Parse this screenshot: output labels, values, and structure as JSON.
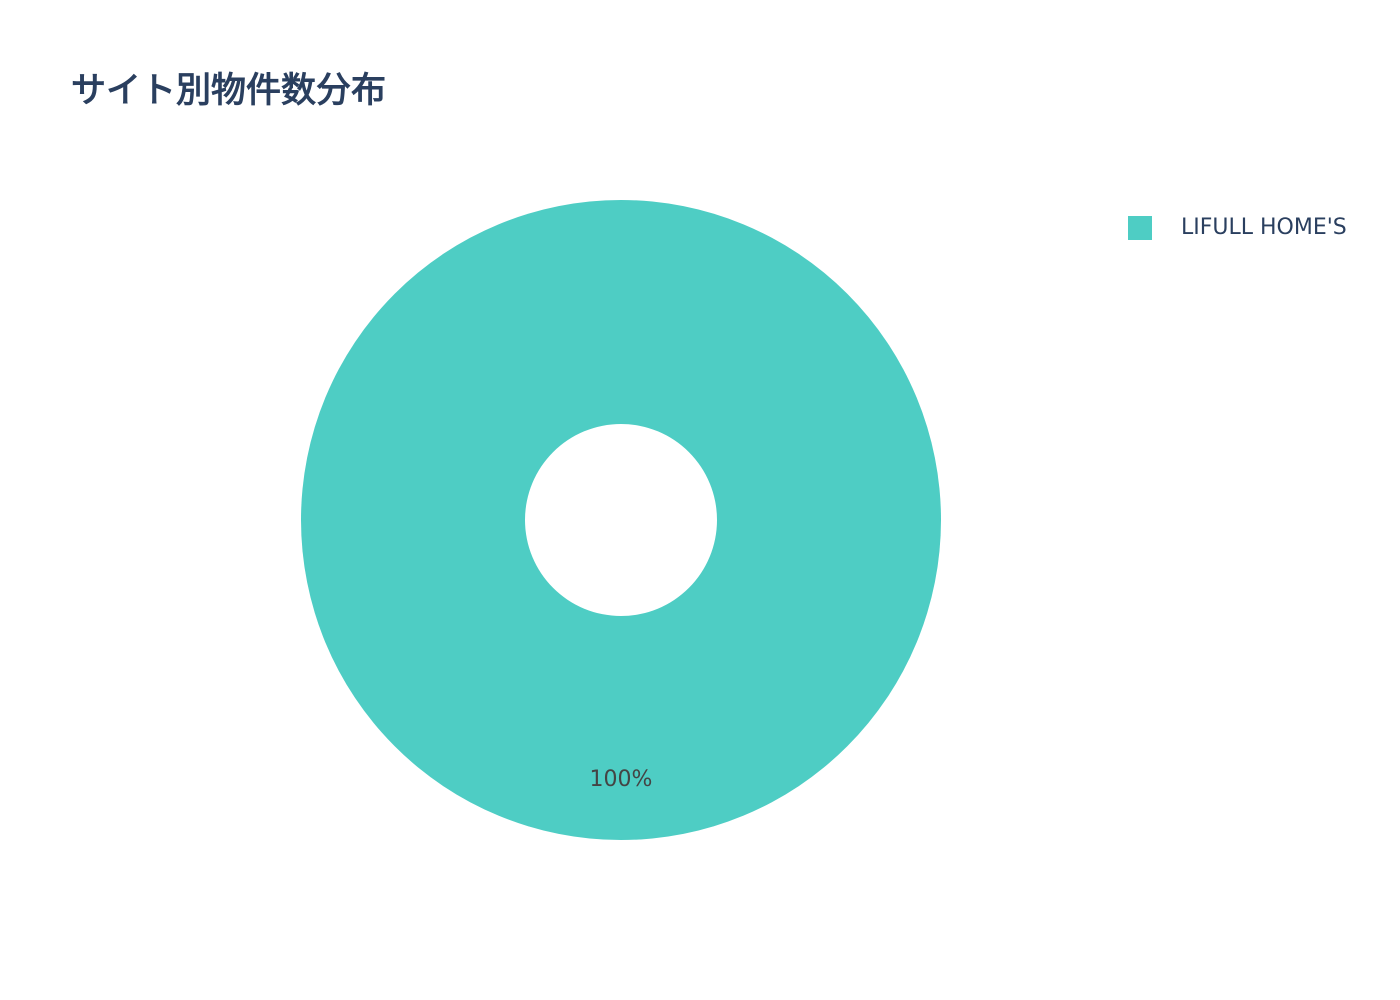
{
  "chart_data": {
    "type": "pie",
    "title": "サイト別物件数分布",
    "hole": 0.3,
    "labels": [
      "LIFULL HOME'S"
    ],
    "values": [
      100
    ],
    "text_labels": [
      "100%"
    ],
    "colors": [
      "#4ECDC4"
    ],
    "legend_position": "top-right"
  }
}
